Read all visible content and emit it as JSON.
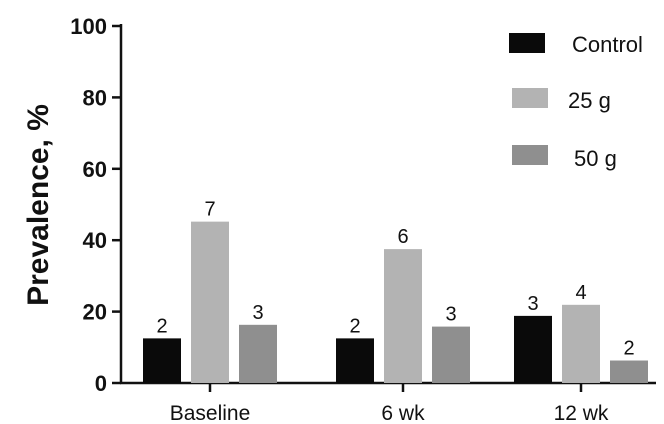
{
  "chart_data": {
    "type": "bar",
    "ylabel": "Prevalence, %",
    "xlabel": "",
    "ylim": [
      0,
      100
    ],
    "yticks": [
      0,
      20,
      40,
      60,
      80,
      100
    ],
    "categories": [
      "Baseline",
      "6 wk",
      "12 wk"
    ],
    "series": [
      {
        "name": "Control",
        "color": "#0a0a0a",
        "values": [
          12.5,
          12.5,
          18.8
        ],
        "labels": [
          "2",
          "2",
          "3"
        ]
      },
      {
        "name": "25 g",
        "color": "#b3b3b3",
        "values": [
          45.2,
          37.5,
          21.9
        ],
        "labels": [
          "7",
          "6",
          "4"
        ]
      },
      {
        "name": "50 g",
        "color": "#8f8f8f",
        "values": [
          16.3,
          15.8,
          6.3
        ],
        "labels": [
          "3",
          "3",
          "2"
        ]
      }
    ],
    "legend_position": "top-right",
    "grid": false
  }
}
